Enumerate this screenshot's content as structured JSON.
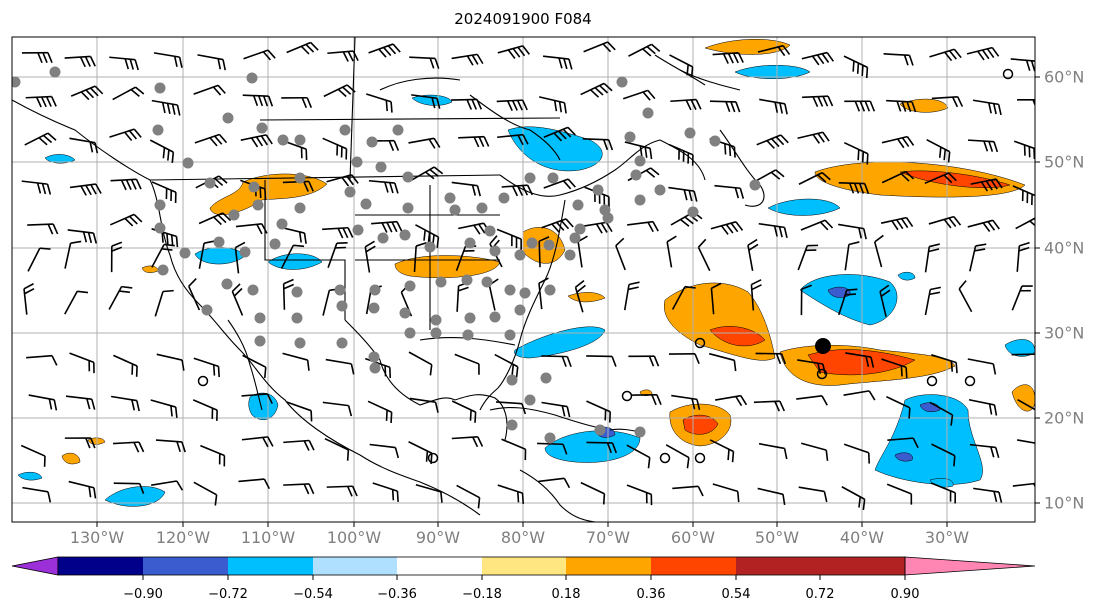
{
  "title": "2024091900 F084",
  "longitude_labels": [
    "130°W",
    "120°W",
    "110°W",
    "100°W",
    "90°W",
    "80°W",
    "70°W",
    "60°W",
    "50°W",
    "40°W",
    "30°W"
  ],
  "latitude_labels": [
    "60°N",
    "50°N",
    "40°N",
    "30°N",
    "20°N",
    "10°N"
  ],
  "colorbar": {
    "ticks": [
      "−0.90",
      "−0.72",
      "−0.54",
      "−0.36",
      "−0.18",
      "0.18",
      "0.36",
      "0.54",
      "0.72",
      "0.90"
    ],
    "colors": [
      "#9b30d9",
      "#00008b",
      "#3a5ccf",
      "#00bfff",
      "#b0e0ff",
      "#ffffff",
      "#ffe680",
      "#ffa500",
      "#ff4500",
      "#b22222",
      "#ff85b3"
    ]
  },
  "map_colors": {
    "positive": {
      "orange": "#ffa500",
      "red": "#ff4500",
      "yellow": "#ffe680"
    },
    "negative": {
      "cyan": "#00bfff",
      "blue": "#3a5ccf"
    },
    "station_dot": "#808080",
    "storm_center": "#000000"
  }
}
